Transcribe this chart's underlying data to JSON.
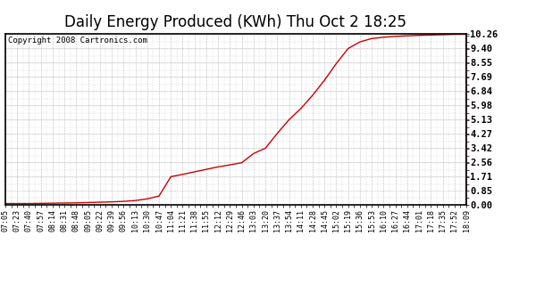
{
  "title": "Daily Energy Produced (KWh) Thu Oct 2 18:25",
  "copyright_text": "Copyright 2008 Cartronics.com",
  "x_labels": [
    "07:05",
    "07:23",
    "07:40",
    "07:57",
    "08:14",
    "08:31",
    "08:48",
    "09:05",
    "09:22",
    "09:39",
    "09:56",
    "10:13",
    "10:30",
    "10:47",
    "11:04",
    "11:21",
    "11:38",
    "11:55",
    "12:12",
    "12:29",
    "12:46",
    "13:03",
    "13:20",
    "13:37",
    "13:54",
    "14:11",
    "14:28",
    "14:45",
    "15:02",
    "15:19",
    "15:36",
    "15:53",
    "16:10",
    "16:27",
    "16:44",
    "17:01",
    "17:18",
    "17:35",
    "17:52",
    "18:09"
  ],
  "y_ticks": [
    0.0,
    0.85,
    1.71,
    2.56,
    3.42,
    4.27,
    5.13,
    5.98,
    6.84,
    7.69,
    8.55,
    9.4,
    10.26
  ],
  "y_values": [
    0.1,
    0.1,
    0.1,
    0.11,
    0.12,
    0.13,
    0.14,
    0.16,
    0.18,
    0.2,
    0.23,
    0.28,
    0.38,
    0.55,
    1.71,
    1.85,
    2.0,
    2.15,
    2.3,
    2.42,
    2.55,
    3.1,
    3.42,
    4.3,
    5.13,
    5.8,
    6.6,
    7.5,
    8.5,
    9.4,
    9.8,
    10.0,
    10.08,
    10.13,
    10.16,
    10.19,
    10.21,
    10.23,
    10.25,
    10.26
  ],
  "line_color": "#cc0000",
  "bg_color": "#ffffff",
  "plot_bg_color": "#ffffff",
  "grid_color": "#bbbbbb",
  "title_fontsize": 12,
  "tick_label_fontsize": 6,
  "copyright_fontsize": 6.5,
  "ylim": [
    0.0,
    10.26
  ],
  "title_color": "#000000",
  "border_color": "#000000"
}
